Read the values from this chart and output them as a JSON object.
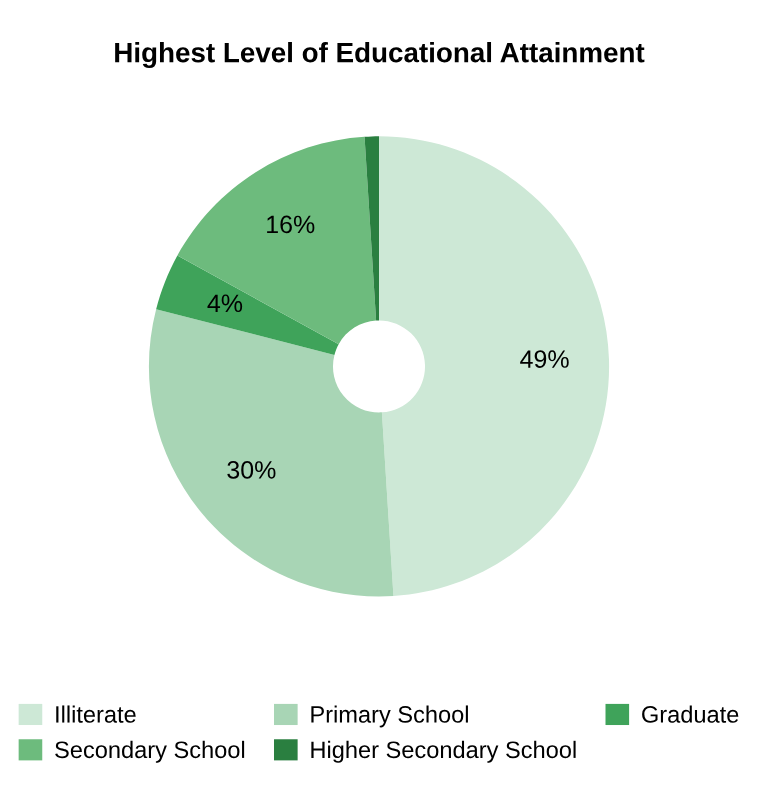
{
  "chart_data": {
    "type": "donut",
    "title": "Highest Level of Educational Attainment",
    "categories": [
      "Illiterate",
      "Primary School",
      "Graduate",
      "Secondary School",
      "Higher Secondary School"
    ],
    "values": [
      49,
      30,
      4,
      16,
      1
    ],
    "colors": [
      "#cde8d6",
      "#a8d5b5",
      "#3fa35a",
      "#6dbb7d",
      "#2a7f40"
    ],
    "value_labels": [
      "49%",
      "30%",
      "4%",
      "16%",
      null
    ],
    "legend": "bottom"
  }
}
